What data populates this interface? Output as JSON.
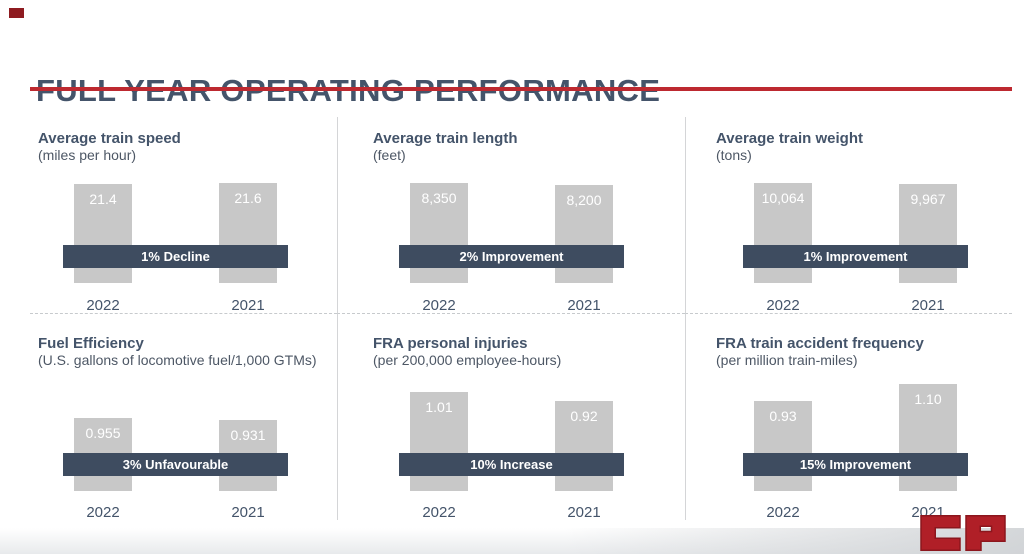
{
  "slide_title": "FULL YEAR OPERATING PERFORMANCE",
  "colors": {
    "accent_red": "#bd2930",
    "band_slate": "#3e4c60",
    "bar_gray": "#c8c8c8",
    "heading_text": "#44546a",
    "logo_red": "#b01f27"
  },
  "logo_text": "CP",
  "panels": [
    {
      "title": "Average train speed",
      "subtitle": "(miles per hour)",
      "band_label": "1% Decline",
      "bars": [
        {
          "year": "2022",
          "value": "21.4"
        },
        {
          "year": "2021",
          "value": "21.6"
        }
      ]
    },
    {
      "title": "Average train length",
      "subtitle": "(feet)",
      "band_label": "2% Improvement",
      "bars": [
        {
          "year": "2022",
          "value": "8,350"
        },
        {
          "year": "2021",
          "value": "8,200"
        }
      ]
    },
    {
      "title": "Average train weight",
      "subtitle": "(tons)",
      "band_label": "1% Improvement",
      "bars": [
        {
          "year": "2022",
          "value": "10,064"
        },
        {
          "year": "2021",
          "value": "9,967"
        }
      ]
    },
    {
      "title": "Fuel Efficiency",
      "subtitle": "(U.S. gallons of locomotive fuel/1,000 GTMs)",
      "band_label": "3% Unfavourable",
      "bars": [
        {
          "year": "2022",
          "value": "0.955"
        },
        {
          "year": "2021",
          "value": "0.931"
        }
      ]
    },
    {
      "title": "FRA personal injuries",
      "subtitle": "(per 200,000 employee-hours)",
      "band_label": "10% Increase",
      "bars": [
        {
          "year": "2022",
          "value": "1.01"
        },
        {
          "year": "2021",
          "value": "0.92"
        }
      ]
    },
    {
      "title": "FRA train accident frequency",
      "subtitle": "(per million train-miles)",
      "band_label": "15% Improvement",
      "bars": [
        {
          "year": "2022",
          "value": "0.93"
        },
        {
          "year": "2021",
          "value": "1.10"
        }
      ]
    }
  ],
  "chart_data": [
    {
      "type": "bar",
      "title": "Average train speed",
      "ylabel": "(miles per hour)",
      "categories": [
        "2022",
        "2021"
      ],
      "values": [
        21.4,
        21.6
      ],
      "annotation": "1% Decline",
      "grid": false,
      "legend": false
    },
    {
      "type": "bar",
      "title": "Average train length",
      "ylabel": "(feet)",
      "categories": [
        "2022",
        "2021"
      ],
      "values": [
        8350,
        8200
      ],
      "annotation": "2% Improvement",
      "grid": false,
      "legend": false
    },
    {
      "type": "bar",
      "title": "Average train weight",
      "ylabel": "(tons)",
      "categories": [
        "2022",
        "2021"
      ],
      "values": [
        10064,
        9967
      ],
      "annotation": "1% Improvement",
      "grid": false,
      "legend": false
    },
    {
      "type": "bar",
      "title": "Fuel Efficiency",
      "ylabel": "(U.S. gallons of locomotive fuel/1,000 GTMs)",
      "categories": [
        "2022",
        "2021"
      ],
      "values": [
        0.955,
        0.931
      ],
      "annotation": "3% Unfavourable",
      "grid": false,
      "legend": false
    },
    {
      "type": "bar",
      "title": "FRA personal injuries",
      "ylabel": "(per 200,000 employee-hours)",
      "categories": [
        "2022",
        "2021"
      ],
      "values": [
        1.01,
        0.92
      ],
      "annotation": "10% Increase",
      "grid": false,
      "legend": false
    },
    {
      "type": "bar",
      "title": "FRA train accident frequency",
      "ylabel": "(per million train-miles)",
      "categories": [
        "2022",
        "2021"
      ],
      "values": [
        0.93,
        1.1
      ],
      "annotation": "15% Improvement",
      "grid": false,
      "legend": false
    }
  ]
}
